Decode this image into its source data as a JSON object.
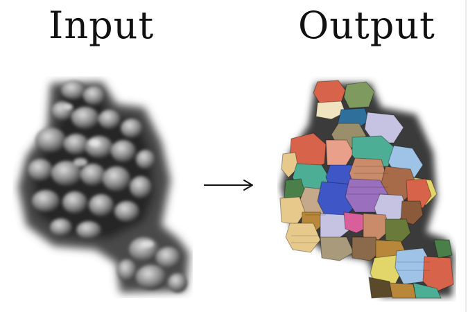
{
  "labels": {
    "input": "Input",
    "output": "Output"
  },
  "arrow_glyph": "→",
  "colors": {
    "background": "#ffffff",
    "text": "#111111",
    "gray_dark": "#2a2a2a",
    "gray_light": "#9a9a9a",
    "segment_palette": [
      "#d7644a",
      "#7f9a5e",
      "#3f56c7",
      "#9a6fbd",
      "#c98b6a",
      "#9fc3e6",
      "#e7c98c",
      "#4cae94",
      "#d95f9a",
      "#c6c3e2",
      "#e2d56a",
      "#e8a08a"
    ]
  }
}
